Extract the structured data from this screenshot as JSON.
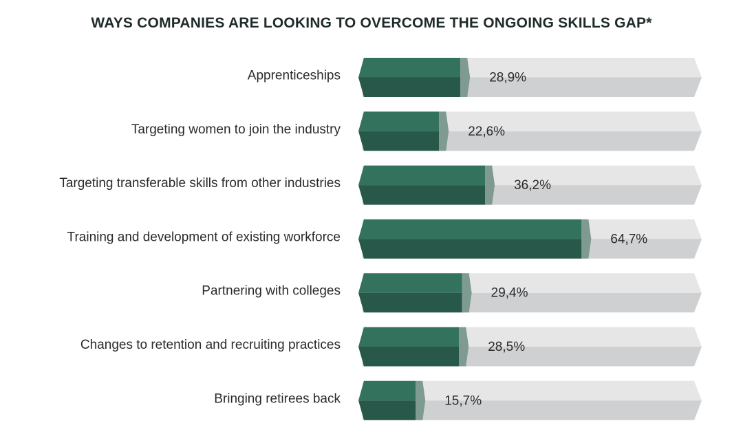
{
  "chart_data": {
    "type": "bar",
    "orientation": "horizontal",
    "title": "WAYS COMPANIES ARE LOOKING TO OVERCOME THE ONGOING SKILLS GAP*",
    "categories": [
      "Apprenticeships",
      "Targeting women to join the industry",
      "Targeting transferable skills from other industries",
      "Training and development of existing workforce",
      "Partnering with colleges",
      "Changes to retention and recruiting practices",
      "Bringing retirees back"
    ],
    "values": [
      28.9,
      22.6,
      36.2,
      64.7,
      29.4,
      28.5,
      15.7
    ],
    "value_labels": [
      "28,9%",
      "22,6%",
      "36,2%",
      "64,7%",
      "29,4%",
      "28,5%",
      "15,7%"
    ],
    "xlim": [
      0,
      100
    ],
    "grid": false,
    "colors": {
      "bar_top": "#33725c",
      "bar_bottom": "#27584a",
      "bar_tip": "#7f9a90",
      "track_top": "#e6e6e7",
      "track_bottom": "#cfd0d2"
    }
  }
}
